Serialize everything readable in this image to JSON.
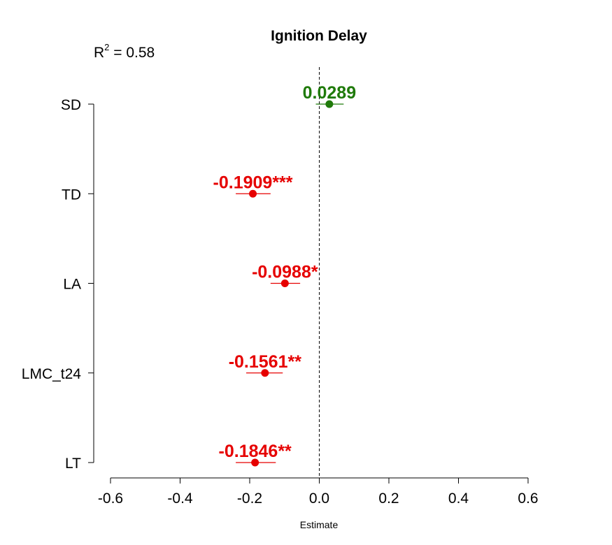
{
  "chart_data": {
    "type": "scatter",
    "title": "Ignition Delay",
    "annotation": {
      "r2_prefix": "R",
      "r2_superscript": "2",
      "r2_value": " = 0.58"
    },
    "xlabel": "Estimate",
    "xlim": [
      -0.6,
      0.6
    ],
    "x_ticks": [
      -0.6,
      -0.4,
      -0.2,
      0.0,
      0.2,
      0.4,
      0.6
    ],
    "x_tick_labels": [
      "-0.6",
      "-0.4",
      "-0.2",
      "0.0",
      "0.2",
      "0.4",
      "0.6"
    ],
    "reference_line": 0,
    "categories": [
      "SD",
      "TD",
      "LA",
      "LMC_t24",
      "LT"
    ],
    "estimates": [
      0.0289,
      -0.1909,
      -0.0988,
      -0.1561,
      -0.1846
    ],
    "ci_lower": [
      -0.01,
      -0.24,
      -0.14,
      -0.21,
      -0.24
    ],
    "ci_upper": [
      0.07,
      -0.14,
      -0.055,
      -0.105,
      -0.125
    ],
    "labels": [
      "0.0289",
      "-0.1909***",
      "-0.0988*",
      "-0.1561**",
      "-0.1846**"
    ],
    "colors": {
      "positive": "#1f7a0a",
      "negative": "#e60000"
    },
    "grid": false
  }
}
